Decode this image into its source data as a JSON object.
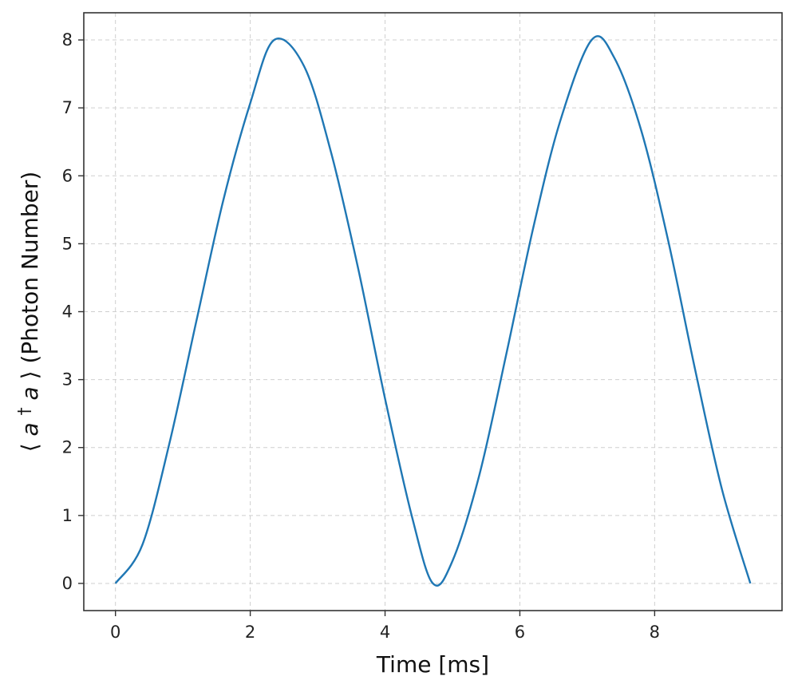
{
  "chart_data": {
    "type": "line",
    "title": "",
    "xlabel": "Time [ms]",
    "ylabel_parts": {
      "open": "⟨",
      "a1": "a",
      "dagger": "†",
      "a2": "a",
      "close": "⟩",
      "suffix": " (Photon Number)"
    },
    "xlim": [
      -0.47,
      9.89
    ],
    "ylim": [
      -0.4,
      8.4
    ],
    "xticks": [
      0,
      2,
      4,
      6,
      8
    ],
    "yticks": [
      0,
      1,
      2,
      3,
      4,
      5,
      6,
      7,
      8
    ],
    "grid": true,
    "series": [
      {
        "color": "#1f77b4",
        "x": [
          0,
          0.4,
          0.8,
          1.2,
          1.6,
          2.0,
          2.355,
          2.8,
          3.2,
          3.6,
          4.0,
          4.4,
          4.71,
          5.0,
          5.4,
          5.8,
          6.2,
          6.6,
          7.065,
          7.4,
          7.8,
          8.2,
          8.6,
          9.0,
          9.42
        ],
        "y": [
          0.0,
          0.57,
          2.06,
          3.86,
          5.64,
          7.07,
          8.0,
          7.61,
          6.34,
          4.64,
          2.72,
          0.98,
          0.0,
          0.33,
          1.6,
          3.38,
          5.24,
          6.81,
          8.0,
          7.74,
          6.67,
          5.05,
          3.15,
          1.38,
          0.0
        ]
      }
    ]
  }
}
